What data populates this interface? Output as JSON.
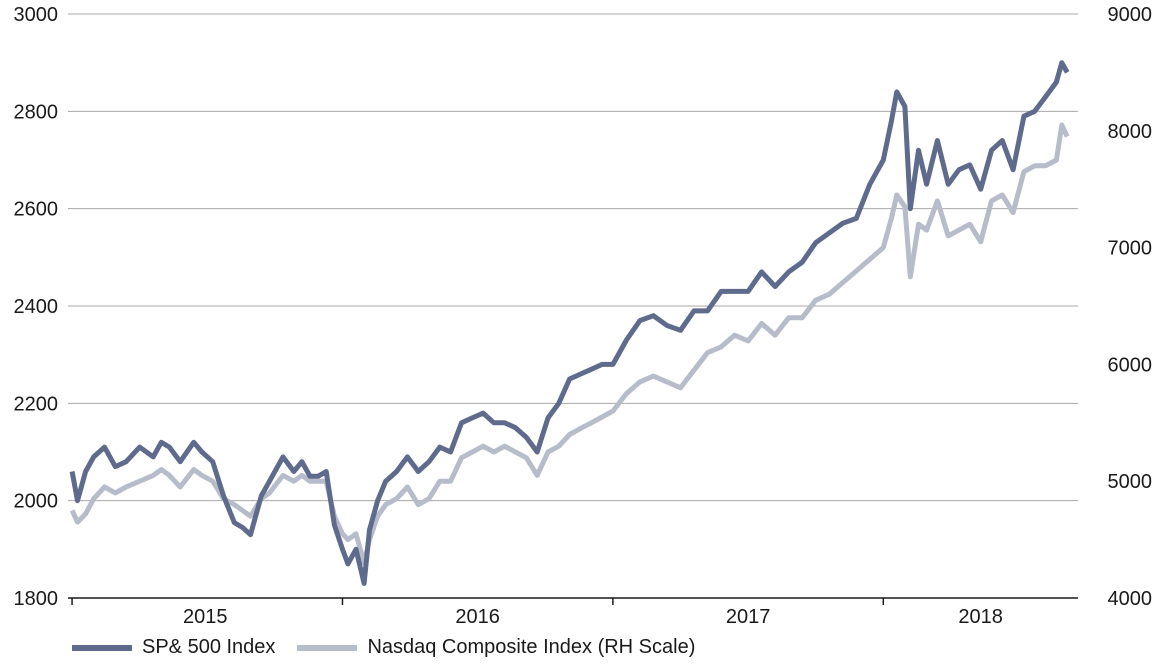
{
  "chart_data": {
    "type": "line",
    "title": "",
    "xlabel": "",
    "ylabel": "",
    "x_ticks": [
      "2015",
      "2016",
      "2017",
      "2018"
    ],
    "y_left": {
      "ylim": [
        1800,
        3000
      ],
      "ticks": [
        "1800",
        "2000",
        "2200",
        "2400",
        "2600",
        "2800",
        "3000"
      ]
    },
    "y_right": {
      "ylim": [
        4000,
        9000
      ],
      "ticks": [
        "4000",
        "5000",
        "6000",
        "7000",
        "8000",
        "9000"
      ]
    },
    "grid": true,
    "legend": "bottom-left",
    "series": [
      {
        "name": "SP& 500 Index",
        "axis": "left",
        "color": "#5e6b8c",
        "x": [
          2015.0,
          2015.02,
          2015.05,
          2015.08,
          2015.12,
          2015.16,
          2015.2,
          2015.25,
          2015.3,
          2015.33,
          2015.36,
          2015.4,
          2015.45,
          2015.48,
          2015.52,
          2015.56,
          2015.6,
          2015.63,
          2015.66,
          2015.7,
          2015.73,
          2015.78,
          2015.82,
          2015.85,
          2015.88,
          2015.91,
          2015.94,
          2015.97,
          2016.0,
          2016.02,
          2016.05,
          2016.08,
          2016.1,
          2016.13,
          2016.16,
          2016.2,
          2016.24,
          2016.28,
          2016.32,
          2016.36,
          2016.4,
          2016.44,
          2016.48,
          2016.52,
          2016.56,
          2016.6,
          2016.64,
          2016.68,
          2016.72,
          2016.76,
          2016.8,
          2016.84,
          2016.88,
          2016.92,
          2016.96,
          2017.0,
          2017.05,
          2017.1,
          2017.15,
          2017.2,
          2017.25,
          2017.3,
          2017.35,
          2017.4,
          2017.45,
          2017.5,
          2017.55,
          2017.6,
          2017.65,
          2017.7,
          2017.75,
          2017.8,
          2017.85,
          2017.9,
          2017.95,
          2018.0,
          2018.03,
          2018.05,
          2018.08,
          2018.1,
          2018.13,
          2018.16,
          2018.2,
          2018.24,
          2018.28,
          2018.32,
          2018.36,
          2018.4,
          2018.44,
          2018.48,
          2018.52,
          2018.56,
          2018.6,
          2018.64,
          2018.66,
          2018.68
        ],
        "values": [
          2060,
          2000,
          2060,
          2090,
          2110,
          2070,
          2080,
          2110,
          2090,
          2120,
          2110,
          2080,
          2120,
          2100,
          2080,
          2010,
          1955,
          1945,
          1930,
          2010,
          2040,
          2090,
          2060,
          2080,
          2050,
          2050,
          2060,
          1950,
          1900,
          1870,
          1900,
          1830,
          1940,
          2000,
          2040,
          2060,
          2090,
          2060,
          2080,
          2110,
          2100,
          2160,
          2170,
          2180,
          2160,
          2160,
          2150,
          2130,
          2100,
          2170,
          2200,
          2250,
          2260,
          2270,
          2280,
          2280,
          2330,
          2370,
          2380,
          2360,
          2350,
          2390,
          2390,
          2430,
          2430,
          2430,
          2470,
          2440,
          2470,
          2490,
          2530,
          2550,
          2570,
          2580,
          2650,
          2700,
          2780,
          2840,
          2810,
          2600,
          2720,
          2650,
          2740,
          2650,
          2680,
          2690,
          2640,
          2720,
          2740,
          2680,
          2790,
          2800,
          2830,
          2860,
          2900,
          2880
        ]
      },
      {
        "name": "Nasdaq Composite Index (RH Scale)",
        "axis": "right",
        "color": "#b6bcc9",
        "x": [
          2015.0,
          2015.02,
          2015.05,
          2015.08,
          2015.12,
          2015.16,
          2015.2,
          2015.25,
          2015.3,
          2015.33,
          2015.36,
          2015.4,
          2015.45,
          2015.48,
          2015.52,
          2015.56,
          2015.6,
          2015.63,
          2015.66,
          2015.7,
          2015.73,
          2015.78,
          2015.82,
          2015.85,
          2015.88,
          2015.91,
          2015.94,
          2015.97,
          2016.0,
          2016.02,
          2016.05,
          2016.08,
          2016.1,
          2016.13,
          2016.16,
          2016.2,
          2016.24,
          2016.28,
          2016.32,
          2016.36,
          2016.4,
          2016.44,
          2016.48,
          2016.52,
          2016.56,
          2016.6,
          2016.64,
          2016.68,
          2016.72,
          2016.76,
          2016.8,
          2016.84,
          2016.88,
          2016.92,
          2016.96,
          2017.0,
          2017.05,
          2017.1,
          2017.15,
          2017.2,
          2017.25,
          2017.3,
          2017.35,
          2017.4,
          2017.45,
          2017.5,
          2017.55,
          2017.6,
          2017.65,
          2017.7,
          2017.75,
          2017.8,
          2017.85,
          2017.9,
          2017.95,
          2018.0,
          2018.03,
          2018.05,
          2018.08,
          2018.1,
          2018.13,
          2018.16,
          2018.2,
          2018.24,
          2018.28,
          2018.32,
          2018.36,
          2018.4,
          2018.44,
          2018.48,
          2018.52,
          2018.56,
          2018.6,
          2018.64,
          2018.66,
          2018.68
        ],
        "values": [
          4750,
          4650,
          4720,
          4850,
          4950,
          4900,
          4950,
          5000,
          5050,
          5100,
          5050,
          4950,
          5100,
          5050,
          5000,
          4850,
          4800,
          4750,
          4700,
          4850,
          4900,
          5050,
          5000,
          5050,
          5000,
          5000,
          5000,
          4700,
          4550,
          4500,
          4550,
          4300,
          4500,
          4700,
          4800,
          4850,
          4950,
          4800,
          4850,
          5000,
          5000,
          5200,
          5250,
          5300,
          5250,
          5300,
          5250,
          5200,
          5050,
          5250,
          5300,
          5400,
          5450,
          5500,
          5550,
          5600,
          5750,
          5850,
          5900,
          5850,
          5800,
          5950,
          6100,
          6150,
          6250,
          6200,
          6350,
          6250,
          6400,
          6400,
          6550,
          6600,
          6700,
          6800,
          6900,
          7000,
          7250,
          7450,
          7350,
          6750,
          7200,
          7150,
          7400,
          7100,
          7150,
          7200,
          7050,
          7400,
          7450,
          7300,
          7650,
          7700,
          7700,
          7750,
          8050,
          7950
        ]
      }
    ]
  }
}
